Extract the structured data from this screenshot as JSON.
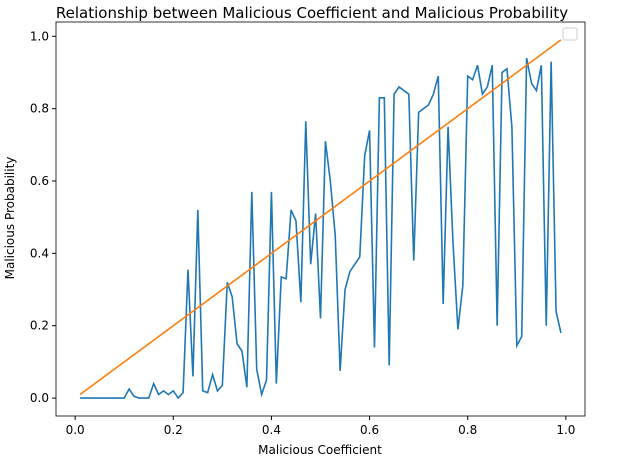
{
  "chart_data": {
    "type": "line",
    "title": "Relationship between Malicious Coefficient and Malicious Probability",
    "xlabel": "Malicious Coefficient",
    "ylabel": "Malicious Probability",
    "xlim": [
      -0.039,
      1.039
    ],
    "ylim": [
      -0.0495,
      1.0395
    ],
    "xticks": [
      {
        "value": 0,
        "label": "0.0"
      },
      {
        "value": 0.2,
        "label": "0.2"
      },
      {
        "value": 0.4,
        "label": "0.4"
      },
      {
        "value": 0.6,
        "label": "0.6"
      },
      {
        "value": 0.8,
        "label": "0.8"
      },
      {
        "value": 1,
        "label": "1.0"
      }
    ],
    "yticks": [
      {
        "value": 0,
        "label": "0.0"
      },
      {
        "value": 0.2,
        "label": "0.2"
      },
      {
        "value": 0.4,
        "label": "0.4"
      },
      {
        "value": 0.6,
        "label": "0.6"
      },
      {
        "value": 0.8,
        "label": "0.8"
      },
      {
        "value": 1,
        "label": "1.0"
      }
    ],
    "legend": "upper right",
    "series": [
      {
        "color": "#1f77b4",
        "x": [
          0.01,
          0.02,
          0.03,
          0.04,
          0.05,
          0.06,
          0.07,
          0.08,
          0.09,
          0.1,
          0.11,
          0.12,
          0.13,
          0.14,
          0.15,
          0.16,
          0.17,
          0.18,
          0.19,
          0.2,
          0.21,
          0.22,
          0.23,
          0.24,
          0.25,
          0.26,
          0.27,
          0.28,
          0.29,
          0.3,
          0.31,
          0.32,
          0.33,
          0.34,
          0.35,
          0.36,
          0.37,
          0.38,
          0.39,
          0.4,
          0.41,
          0.42,
          0.43,
          0.44,
          0.45,
          0.46,
          0.47,
          0.48,
          0.49,
          0.5,
          0.51,
          0.52,
          0.53,
          0.54,
          0.55,
          0.56,
          0.57,
          0.58,
          0.59,
          0.6,
          0.61,
          0.62,
          0.63,
          0.64,
          0.65,
          0.66,
          0.67,
          0.68,
          0.69,
          0.7,
          0.71,
          0.72,
          0.73,
          0.74,
          0.75,
          0.76,
          0.77,
          0.78,
          0.79,
          0.8,
          0.81,
          0.82,
          0.83,
          0.84,
          0.85,
          0.86,
          0.87,
          0.88,
          0.89,
          0.9,
          0.91,
          0.92,
          0.93,
          0.94,
          0.95,
          0.96,
          0.97,
          0.98,
          0.99
        ],
        "values": [
          0,
          0,
          0,
          0,
          0,
          0,
          0,
          0,
          0,
          0,
          0.025,
          0.005,
          0,
          0,
          0,
          0.04,
          0.01,
          0.02,
          0.01,
          0.02,
          0,
          0.015,
          0.355,
          0.06,
          0.52,
          0.02,
          0.015,
          0.065,
          0.02,
          0.035,
          0.32,
          0.28,
          0.15,
          0.13,
          0.03,
          0.57,
          0.08,
          0.01,
          0.05,
          0.57,
          0.04,
          0.335,
          0.33,
          0.52,
          0.49,
          0.265,
          0.765,
          0.37,
          0.51,
          0.22,
          0.71,
          0.6,
          0.45,
          0.075,
          0.3,
          0.35,
          0.37,
          0.39,
          0.67,
          0.74,
          0.14,
          0.83,
          0.83,
          0.09,
          0.84,
          0.86,
          0.85,
          0.84,
          0.38,
          0.79,
          0.8,
          0.81,
          0.84,
          0.89,
          0.26,
          0.75,
          0.43,
          0.19,
          0.31,
          0.89,
          0.88,
          0.92,
          0.84,
          0.86,
          0.92,
          0.2,
          0.9,
          0.91,
          0.75,
          0.145,
          0.17,
          0.94,
          0.87,
          0.85,
          0.92,
          0.2,
          0.93,
          0.24,
          0.18
        ]
      },
      {
        "color": "#ff7f0e",
        "x": [
          0.01,
          0.99
        ],
        "values": [
          0.01,
          0.99
        ]
      }
    ]
  }
}
